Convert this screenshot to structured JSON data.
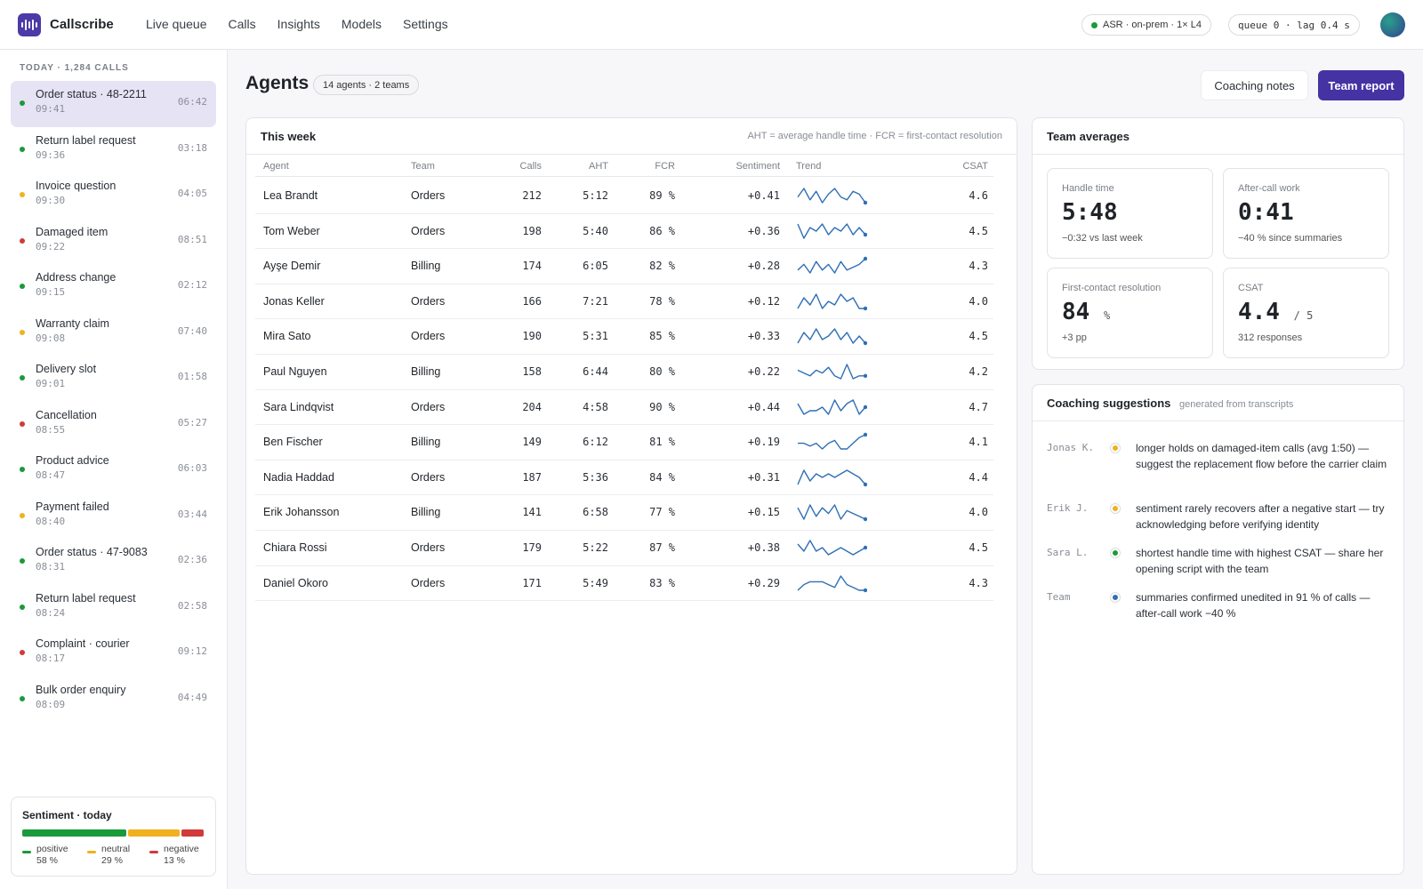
{
  "app": {
    "brand": "Callscribe",
    "nav": [
      "Live queue",
      "Calls",
      "Insights",
      "Models",
      "Settings"
    ],
    "asr_status": "ASR · on-prem · 1× L4",
    "queue_status": "queue 0 · lag 0.4 s",
    "status_color": "#1a9a3a"
  },
  "sidebar": {
    "heading": "TODAY · 1,284 CALLS",
    "calls": [
      {
        "title": "Order status · 48-2211",
        "time": "09:41",
        "duration": "06:42",
        "sentiment": "positive"
      },
      {
        "title": "Return label request",
        "time": "09:36",
        "duration": "03:18",
        "sentiment": "positive"
      },
      {
        "title": "Invoice question",
        "time": "09:30",
        "duration": "04:05",
        "sentiment": "neutral"
      },
      {
        "title": "Damaged item",
        "time": "09:22",
        "duration": "08:51",
        "sentiment": "negative"
      },
      {
        "title": "Address change",
        "time": "09:15",
        "duration": "02:12",
        "sentiment": "positive"
      },
      {
        "title": "Warranty claim",
        "time": "09:08",
        "duration": "07:40",
        "sentiment": "neutral"
      },
      {
        "title": "Delivery slot",
        "time": "09:01",
        "duration": "01:58",
        "sentiment": "positive"
      },
      {
        "title": "Cancellation",
        "time": "08:55",
        "duration": "05:27",
        "sentiment": "negative"
      },
      {
        "title": "Product advice",
        "time": "08:47",
        "duration": "06:03",
        "sentiment": "positive"
      },
      {
        "title": "Payment failed",
        "time": "08:40",
        "duration": "03:44",
        "sentiment": "neutral"
      },
      {
        "title": "Order status · 47-9083",
        "time": "08:31",
        "duration": "02:36",
        "sentiment": "positive"
      },
      {
        "title": "Return label request",
        "time": "08:24",
        "duration": "02:58",
        "sentiment": "positive"
      },
      {
        "title": "Complaint · courier",
        "time": "08:17",
        "duration": "09:12",
        "sentiment": "negative"
      },
      {
        "title": "Bulk order enquiry",
        "time": "08:09",
        "duration": "04:49",
        "sentiment": "positive"
      }
    ],
    "sentiment": {
      "title": "Sentiment · today",
      "positive_label": "positive",
      "positive_value": "58 %",
      "positive_fraction": 0.58,
      "neutral_label": "neutral",
      "neutral_value": "29 %",
      "neutral_fraction": 0.29,
      "negative_label": "negative",
      "negative_value": "13 %",
      "negative_fraction": 0.13
    },
    "colors": {
      "positive": "#1a9a3a",
      "neutral": "#f0b020",
      "negative": "#d03a3a"
    }
  },
  "header": {
    "title": "Agents",
    "badge": "14 agents · 2 teams",
    "coaching_btn": "Coaching notes",
    "report_btn": "Team report"
  },
  "table": {
    "title": "This week",
    "note": "AHT = average handle time · FCR = first-contact resolution",
    "columns": [
      "Agent",
      "Team",
      "Calls",
      "AHT",
      "FCR",
      "Sentiment",
      "Trend",
      "CSAT"
    ],
    "rows": [
      {
        "agent": "Lea Brandt",
        "team": "Orders",
        "calls": "212",
        "aht": "5:12",
        "fcr": "89 %",
        "sentiment": "+0.41",
        "csat": "4.6",
        "trend": [
          3,
          6,
          2,
          5,
          1,
          4,
          6,
          3,
          2,
          5,
          4,
          1
        ]
      },
      {
        "agent": "Tom Weber",
        "team": "Orders",
        "calls": "198",
        "aht": "5:40",
        "fcr": "86 %",
        "sentiment": "+0.36",
        "csat": "4.5",
        "trend": [
          5,
          1,
          4,
          3,
          5,
          2,
          4,
          3,
          5,
          2,
          4,
          2
        ]
      },
      {
        "agent": "Ayşe Demir",
        "team": "Billing",
        "calls": "174",
        "aht": "6:05",
        "fcr": "82 %",
        "sentiment": "+0.28",
        "csat": "4.3",
        "trend": [
          2,
          4,
          1,
          5,
          2,
          4,
          1,
          5,
          2,
          3,
          4,
          6
        ]
      },
      {
        "agent": "Jonas Keller",
        "team": "Orders",
        "calls": "166",
        "aht": "7:21",
        "fcr": "78 %",
        "sentiment": "+0.12",
        "csat": "4.0",
        "trend": [
          1,
          4,
          2,
          5,
          1,
          3,
          2,
          5,
          3,
          4,
          1,
          1
        ]
      },
      {
        "agent": "Mira Sato",
        "team": "Orders",
        "calls": "190",
        "aht": "5:31",
        "fcr": "85 %",
        "sentiment": "+0.33",
        "csat": "4.5",
        "trend": [
          1,
          4,
          2,
          5,
          2,
          3,
          5,
          2,
          4,
          1,
          3,
          1
        ]
      },
      {
        "agent": "Paul Nguyen",
        "team": "Billing",
        "calls": "158",
        "aht": "6:44",
        "fcr": "80 %",
        "sentiment": "+0.22",
        "csat": "4.2",
        "trend": [
          4,
          3,
          2,
          4,
          3,
          5,
          2,
          1,
          6,
          1,
          2,
          2
        ]
      },
      {
        "agent": "Sara Lindqvist",
        "team": "Orders",
        "calls": "204",
        "aht": "4:58",
        "fcr": "90 %",
        "sentiment": "+0.44",
        "csat": "4.7",
        "trend": [
          4,
          1,
          2,
          2,
          3,
          1,
          5,
          2,
          4,
          5,
          1,
          3
        ]
      },
      {
        "agent": "Ben Fischer",
        "team": "Billing",
        "calls": "149",
        "aht": "6:12",
        "fcr": "81 %",
        "sentiment": "+0.19",
        "csat": "4.1",
        "trend": [
          3,
          3,
          2,
          3,
          1,
          3,
          4,
          1,
          1,
          3,
          5,
          6
        ]
      },
      {
        "agent": "Nadia Haddad",
        "team": "Orders",
        "calls": "187",
        "aht": "5:36",
        "fcr": "84 %",
        "sentiment": "+0.31",
        "csat": "4.4",
        "trend": [
          1,
          5,
          2,
          4,
          3,
          4,
          3,
          4,
          5,
          4,
          3,
          1
        ]
      },
      {
        "agent": "Erik Johansson",
        "team": "Billing",
        "calls": "141",
        "aht": "6:58",
        "fcr": "77 %",
        "sentiment": "+0.15",
        "csat": "4.0",
        "trend": [
          5,
          1,
          6,
          2,
          5,
          3,
          6,
          1,
          4,
          3,
          2,
          1
        ]
      },
      {
        "agent": "Chiara Rossi",
        "team": "Orders",
        "calls": "179",
        "aht": "5:22",
        "fcr": "87 %",
        "sentiment": "+0.38",
        "csat": "4.5",
        "trend": [
          4,
          2,
          5,
          2,
          3,
          1,
          2,
          3,
          2,
          1,
          2,
          3
        ]
      },
      {
        "agent": "Daniel Okoro",
        "team": "Orders",
        "calls": "171",
        "aht": "5:49",
        "fcr": "83 %",
        "sentiment": "+0.29",
        "csat": "4.3",
        "trend": [
          1,
          3,
          4,
          4,
          4,
          3,
          2,
          6,
          3,
          2,
          1,
          1
        ]
      }
    ],
    "trend_color": "#2f6fb5"
  },
  "averages": {
    "title": "Team averages",
    "kpis": [
      {
        "label": "Handle time",
        "value": "5:48",
        "unit": "",
        "sub": "−0:32 vs last week"
      },
      {
        "label": "After-call work",
        "value": "0:41",
        "unit": "",
        "sub": "−40 % since summaries"
      },
      {
        "label": "First-contact resolution",
        "value": "84",
        "unit": "%",
        "sub": "+3 pp"
      },
      {
        "label": "CSAT",
        "value": "4.4",
        "unit": "/ 5",
        "sub": "312 responses"
      }
    ]
  },
  "coaching": {
    "title": "Coaching suggestions",
    "subtitle": "generated from transcripts",
    "items": [
      {
        "who": "Jonas K.",
        "color": "#f0b020",
        "text": "longer holds on damaged-item calls (avg 1:50) — suggest the replacement flow before the carrier claim"
      },
      {
        "who": "Erik J.",
        "color": "#f0b020",
        "text": "sentiment rarely recovers after a negative start — try acknowledging before verifying identity"
      },
      {
        "who": "Sara L.",
        "color": "#1a9a3a",
        "text": "shortest handle time with highest CSAT — share her opening script with the team"
      },
      {
        "who": "Team",
        "color": "#2f6fb5",
        "text": "summaries confirmed unedited in 91 % of calls — after-call work −40 %"
      }
    ]
  }
}
